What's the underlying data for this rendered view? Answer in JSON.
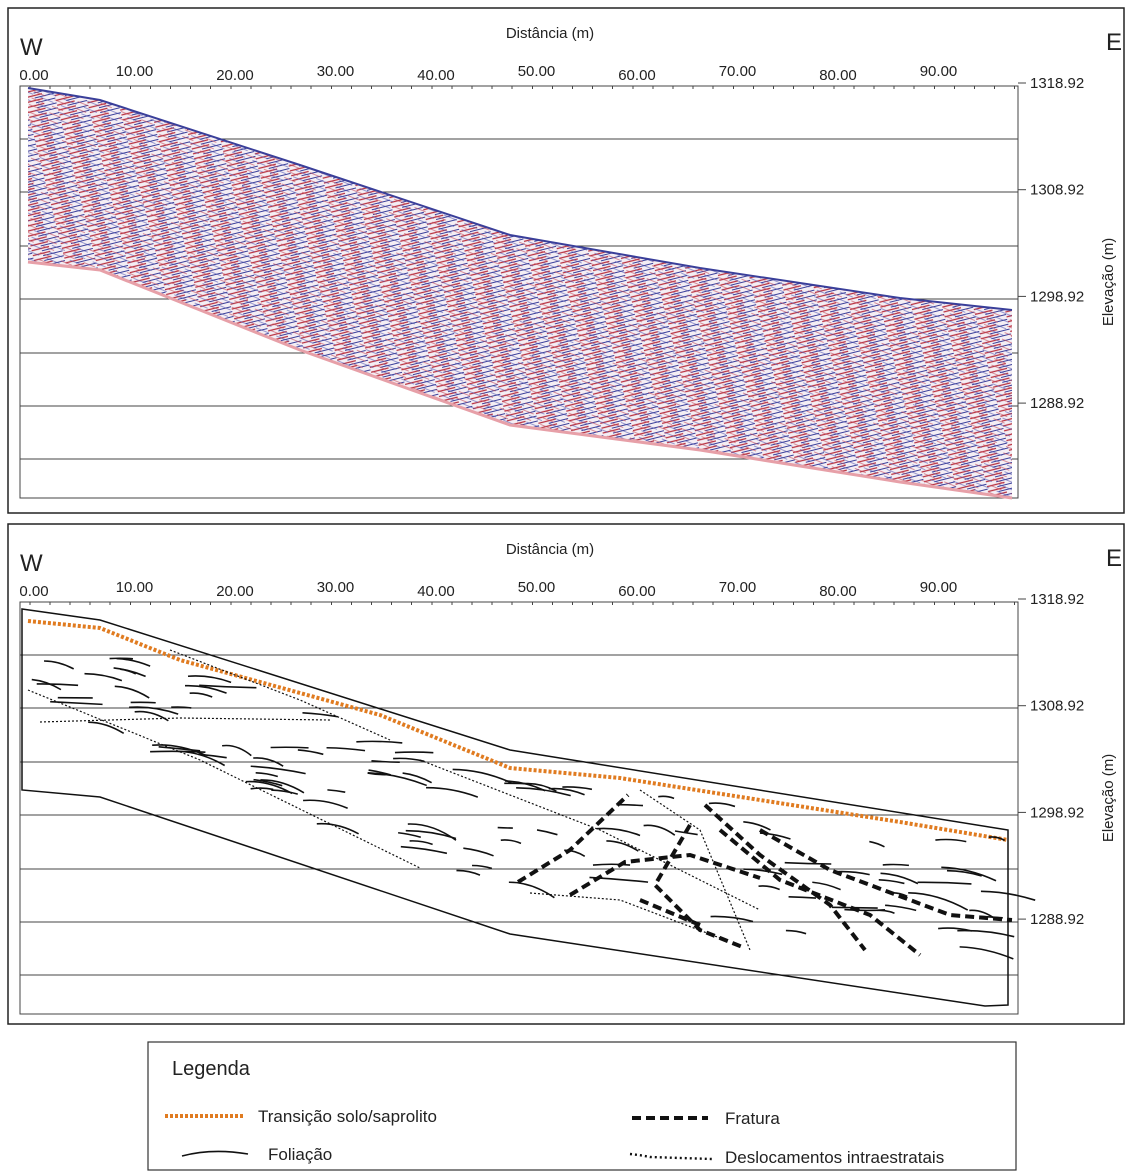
{
  "panels": [
    {
      "west": "W",
      "east": "E",
      "x_axis_title": "Distância (m)",
      "y_axis_title": "Elevação (m)",
      "x_ticks": [
        "0.00",
        "10.00",
        "20.00",
        "30.00",
        "40.00",
        "50.00",
        "60.00",
        "70.00",
        "80.00",
        "90.00"
      ],
      "y_ticks": [
        "1318.92",
        "1308.92",
        "1298.92",
        "1288.92"
      ]
    },
    {
      "west": "W",
      "east": "E",
      "x_axis_title": "Distância (m)",
      "y_axis_title": "Elevação (m)",
      "x_ticks": [
        "0.00",
        "10.00",
        "20.00",
        "30.00",
        "40.00",
        "50.00",
        "60.00",
        "70.00",
        "80.00",
        "90.00"
      ],
      "y_ticks": [
        "1318.92",
        "1308.92",
        "1298.92",
        "1288.92"
      ]
    }
  ],
  "legend": {
    "title": "Legenda",
    "items": [
      "Transição solo/saprolito",
      "Foliação",
      "Fratura",
      "Deslocamentos intraestratais"
    ]
  }
}
